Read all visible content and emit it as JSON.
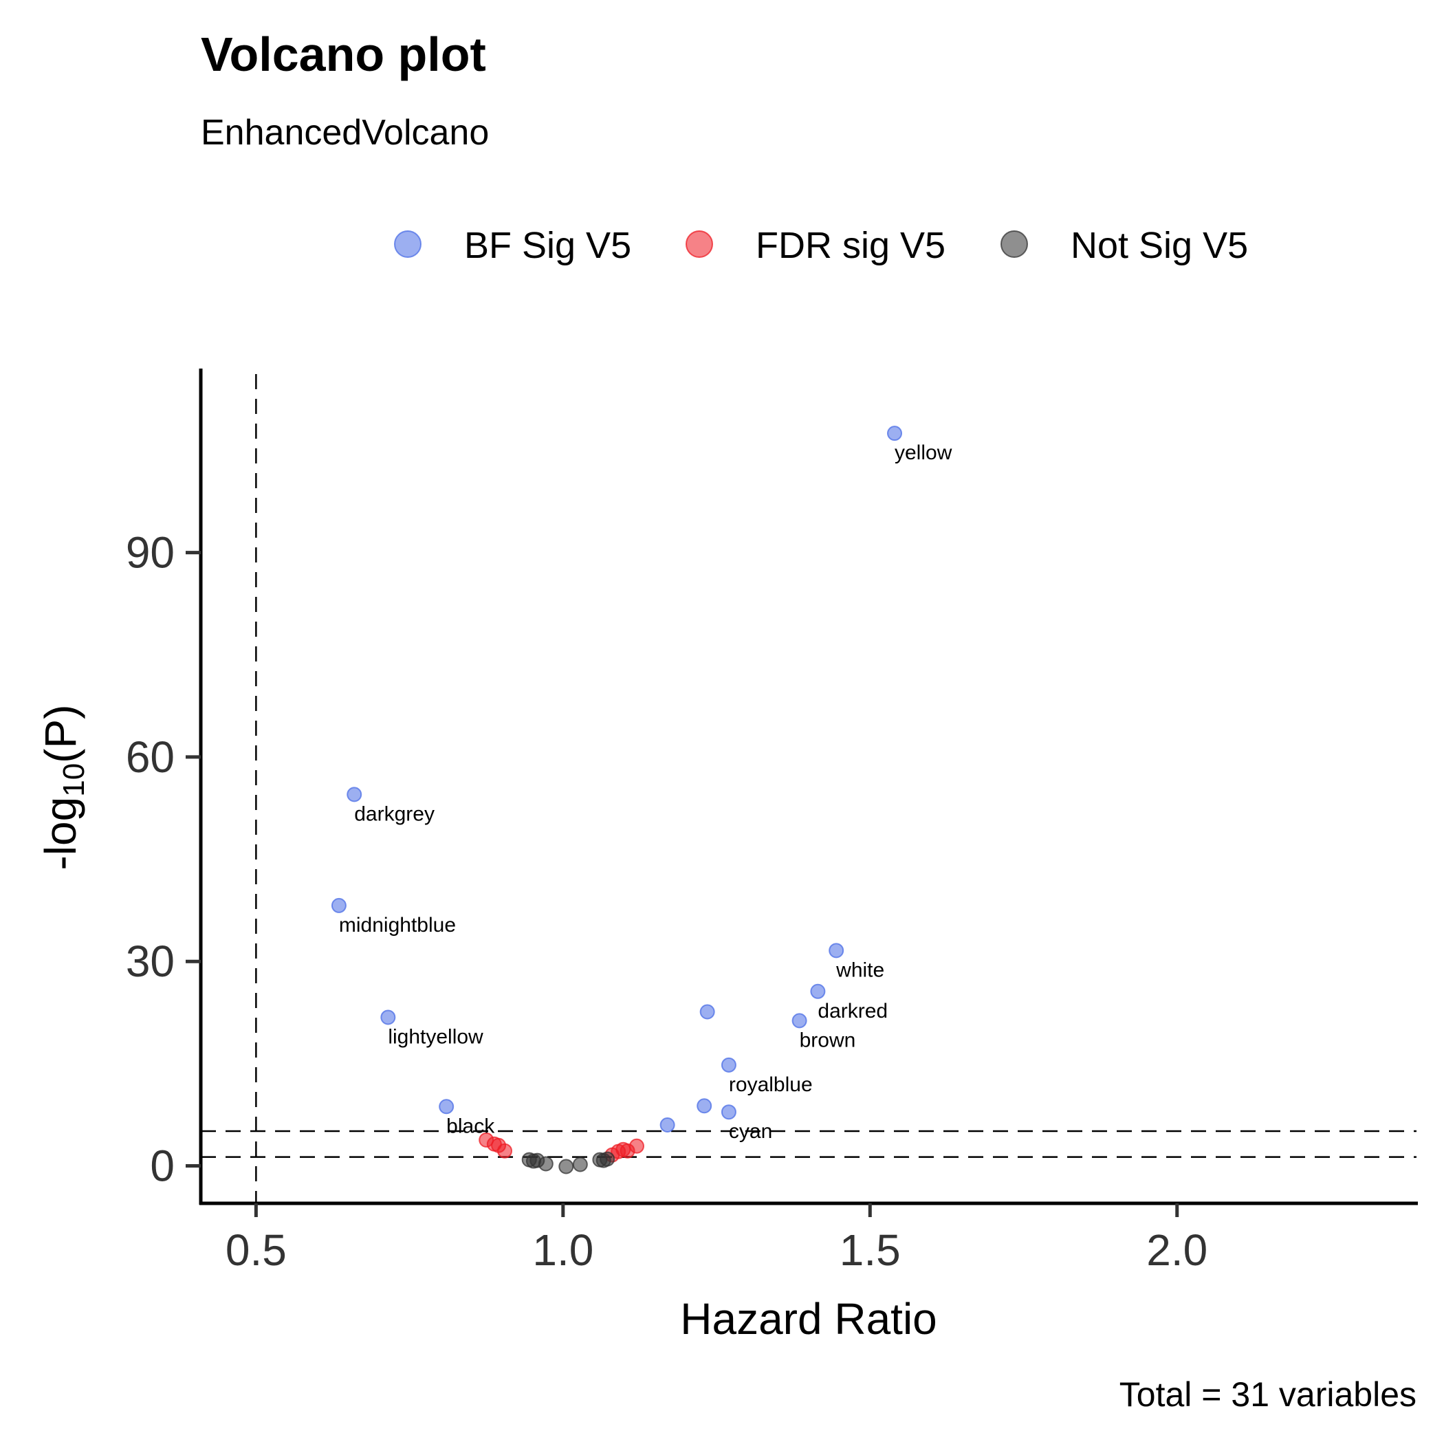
{
  "chart_data": {
    "type": "scatter",
    "title": "Volcano plot",
    "subtitle": "EnhancedVolcano",
    "xlabel": "Hazard Ratio",
    "ylabel_main": "-log",
    "ylabel_sub": "10",
    "ylabel_tail": "(P)",
    "caption": "Total = 31 variables",
    "xlim": [
      0.41,
      2.39
    ],
    "ylim": [
      -5.5,
      117
    ],
    "xticks": [
      "0.5",
      "1.0",
      "1.5",
      "2.0"
    ],
    "yticks": [
      "0",
      "30",
      "60",
      "90"
    ],
    "vlines": [
      0.5
    ],
    "hlines": [
      1.3,
      5.1
    ],
    "legend_position": "top",
    "series": [
      {
        "name": "BF Sig V5",
        "color": "#4b6ee6",
        "points": [
          {
            "x": 1.54,
            "y": 107.5,
            "label": "yellow"
          },
          {
            "x": 0.66,
            "y": 54.5,
            "label": "darkgrey"
          },
          {
            "x": 0.635,
            "y": 38.2,
            "label": "midnightblue"
          },
          {
            "x": 1.445,
            "y": 31.6,
            "label": "white"
          },
          {
            "x": 1.415,
            "y": 25.6,
            "label": "darkred"
          },
          {
            "x": 1.235,
            "y": 22.6,
            "label": ""
          },
          {
            "x": 1.385,
            "y": 21.3,
            "label": "brown"
          },
          {
            "x": 0.715,
            "y": 21.8,
            "label": "lightyellow"
          },
          {
            "x": 1.27,
            "y": 14.8,
            "label": "royalblue"
          },
          {
            "x": 0.81,
            "y": 8.7,
            "label": "black"
          },
          {
            "x": 1.23,
            "y": 8.8,
            "label": ""
          },
          {
            "x": 1.27,
            "y": 7.9,
            "label": "cyan"
          },
          {
            "x": 1.17,
            "y": 6.0,
            "label": ""
          }
        ]
      },
      {
        "name": "FDR sig V5",
        "color": "#ee1c24",
        "points": [
          {
            "x": 0.875,
            "y": 3.8
          },
          {
            "x": 0.888,
            "y": 3.2
          },
          {
            "x": 0.895,
            "y": 3.0
          },
          {
            "x": 0.905,
            "y": 2.2
          },
          {
            "x": 1.08,
            "y": 1.6
          },
          {
            "x": 1.09,
            "y": 2.1
          },
          {
            "x": 1.098,
            "y": 2.4
          },
          {
            "x": 1.105,
            "y": 2.2
          },
          {
            "x": 1.12,
            "y": 2.9
          }
        ]
      },
      {
        "name": "Not Sig V5",
        "color": "#333333",
        "points": [
          {
            "x": 0.945,
            "y": 0.9
          },
          {
            "x": 0.952,
            "y": 0.7
          },
          {
            "x": 0.958,
            "y": 0.8
          },
          {
            "x": 0.972,
            "y": 0.3
          },
          {
            "x": 1.005,
            "y": -0.1
          },
          {
            "x": 1.028,
            "y": 0.2
          },
          {
            "x": 1.06,
            "y": 0.9
          },
          {
            "x": 1.066,
            "y": 0.8
          },
          {
            "x": 1.072,
            "y": 1.0
          }
        ]
      }
    ]
  }
}
